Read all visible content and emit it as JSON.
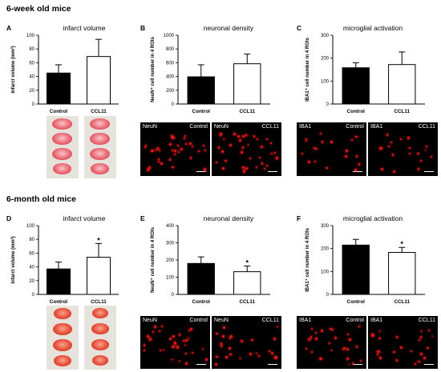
{
  "rows": [
    {
      "title": "6-week old mice"
    },
    {
      "title": "6-month old mice"
    }
  ],
  "panels": [
    {
      "id": "A",
      "title": "infarct volume"
    },
    {
      "id": "B",
      "title": "neuronal density"
    },
    {
      "id": "C",
      "title": "microglial activation"
    },
    {
      "id": "D",
      "title": "infarct volume"
    },
    {
      "id": "E",
      "title": "neuronal density"
    },
    {
      "id": "F",
      "title": "microglial activation"
    }
  ],
  "chart_data": [
    {
      "panel": "A",
      "type": "bar",
      "categories": [
        "Control",
        "CCL11"
      ],
      "values": [
        45,
        69
      ],
      "errors": [
        12,
        25
      ],
      "ylim": [
        0,
        100
      ],
      "yticks": [
        0,
        20,
        40,
        60,
        80,
        100
      ],
      "ylabel": "infarct volume (mm³)",
      "fills": [
        "#000000",
        "#ffffff"
      ],
      "significance": [
        "",
        ""
      ]
    },
    {
      "panel": "B",
      "type": "bar",
      "categories": [
        "Control",
        "CCL11"
      ],
      "values": [
        395,
        585
      ],
      "errors": [
        175,
        140
      ],
      "ylim": [
        0,
        1000
      ],
      "yticks": [
        0,
        200,
        400,
        600,
        800,
        1000
      ],
      "ylabel": "NeuN⁺ cell number in 4 ROIs",
      "fills": [
        "#000000",
        "#ffffff"
      ],
      "significance": [
        "",
        ""
      ]
    },
    {
      "panel": "C",
      "type": "bar",
      "categories": [
        "Control",
        "CCL11"
      ],
      "values": [
        158,
        172
      ],
      "errors": [
        22,
        55
      ],
      "ylim": [
        0,
        300
      ],
      "yticks": [
        0,
        100,
        200,
        300
      ],
      "ylabel": "IBA1⁺ cell number in 4 ROIs",
      "fills": [
        "#000000",
        "#ffffff"
      ],
      "significance": [
        "",
        ""
      ]
    },
    {
      "panel": "D",
      "type": "bar",
      "categories": [
        "Control",
        "CCL11"
      ],
      "values": [
        37,
        54
      ],
      "errors": [
        10,
        20
      ],
      "ylim": [
        0,
        100
      ],
      "yticks": [
        0,
        20,
        40,
        60,
        80,
        100
      ],
      "ylabel": "infarct volume (mm³)",
      "fills": [
        "#000000",
        "#ffffff"
      ],
      "significance": [
        "",
        "*"
      ]
    },
    {
      "panel": "E",
      "type": "bar",
      "categories": [
        "Control",
        "CCL11"
      ],
      "values": [
        180,
        132
      ],
      "errors": [
        38,
        33
      ],
      "ylim": [
        0,
        400
      ],
      "yticks": [
        0,
        100,
        200,
        300,
        400
      ],
      "ylabel": "NeuN⁺ cell number in 4 ROIs",
      "fills": [
        "#000000",
        "#ffffff"
      ],
      "significance": [
        "",
        "*"
      ]
    },
    {
      "panel": "F",
      "type": "bar",
      "categories": [
        "Control",
        "CCL11"
      ],
      "values": [
        215,
        183
      ],
      "errors": [
        25,
        22
      ],
      "ylim": [
        0,
        300
      ],
      "yticks": [
        0,
        100,
        200,
        300
      ],
      "ylabel": "IBA1⁺ cell number in 4 ROIs",
      "fills": [
        "#000000",
        "#ffffff"
      ],
      "significance": [
        "",
        "*"
      ]
    }
  ],
  "micrographs": [
    {
      "panel": "B",
      "left": {
        "stain": "NeuN",
        "group": "Control"
      },
      "right": {
        "stain": "NeuN",
        "group": "CCL11"
      }
    },
    {
      "panel": "C",
      "left": {
        "stain": "IBA1",
        "group": "Control"
      },
      "right": {
        "stain": "IBA1",
        "group": "CCL11"
      }
    },
    {
      "panel": "E",
      "left": {
        "stain": "NeuN",
        "group": "Control"
      },
      "right": {
        "stain": "NeuN",
        "group": "CCL11"
      }
    },
    {
      "panel": "F",
      "left": {
        "stain": "IBA1",
        "group": "Control"
      },
      "right": {
        "stain": "IBA1",
        "group": "CCL11"
      }
    }
  ],
  "colors": {
    "stain_red": "#e01818",
    "brain_section_young": "#e8606c",
    "brain_section_old": "#e74f3a"
  }
}
